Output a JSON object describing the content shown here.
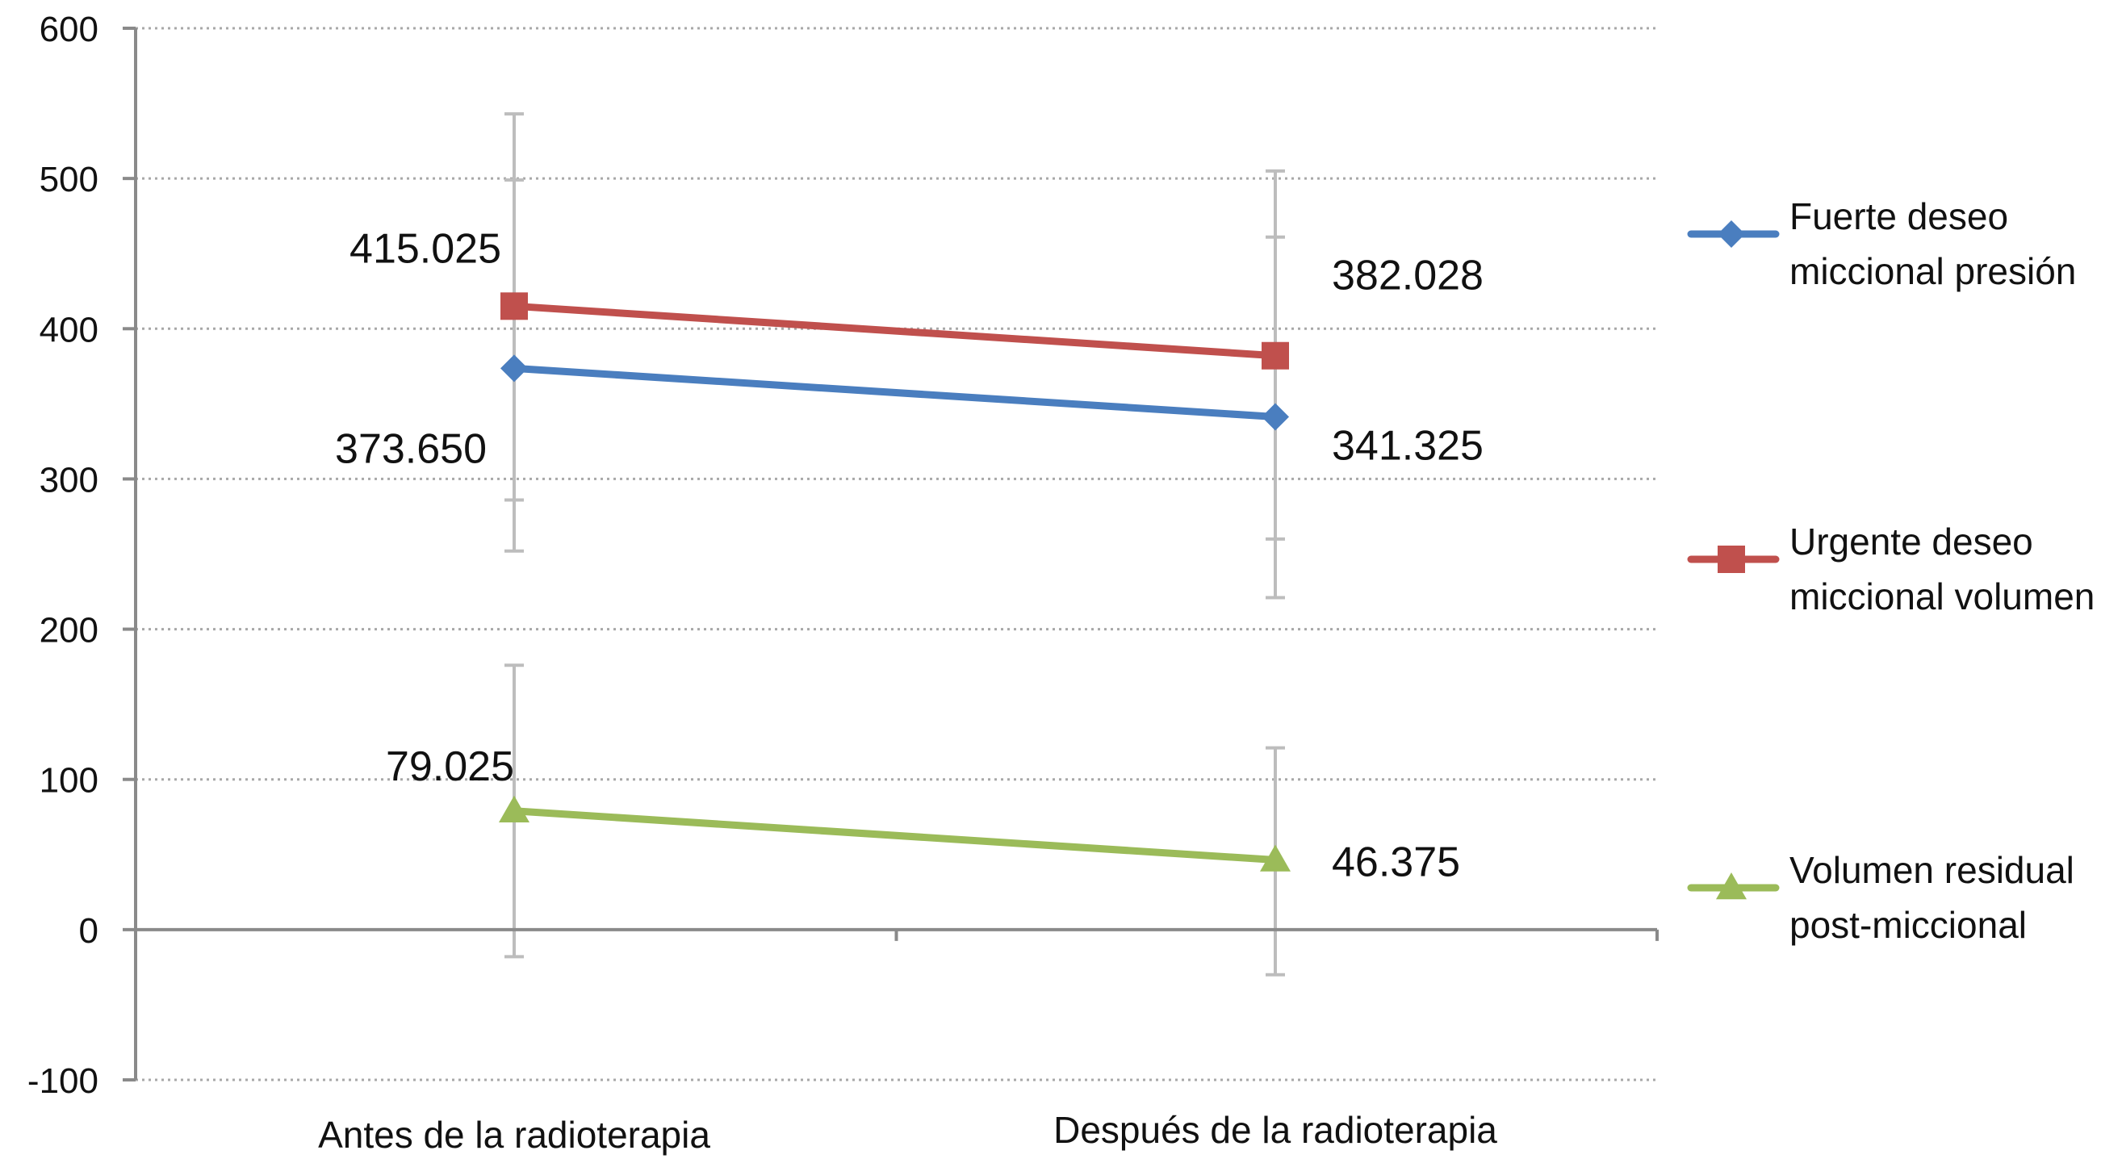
{
  "chart_data": {
    "type": "line",
    "categories": [
      "Antes de la radioterapia",
      "Después de la radioterapia"
    ],
    "ylim": [
      -100,
      600
    ],
    "yticks": [
      -100,
      0,
      100,
      200,
      300,
      400,
      500,
      600
    ],
    "ytick_labels": [
      "-100",
      "0",
      "100",
      "200",
      "300",
      "400",
      "500",
      "600"
    ],
    "grid": true,
    "legend_position": "right",
    "series": [
      {
        "name": "Fuerte deseo miccional presión",
        "legend_lines": [
          "Fuerte deseo",
          "miccional presión"
        ],
        "values": [
          373.65,
          341.325
        ],
        "labels": [
          "373.650",
          "341.325"
        ],
        "error": [
          [
            252,
            543
          ],
          [
            221,
            505
          ]
        ],
        "color": "#4a7ebf",
        "marker": "diamond"
      },
      {
        "name": "Urgente deseo miccional volumen",
        "legend_lines": [
          "Urgente deseo",
          "miccional volumen"
        ],
        "values": [
          415.025,
          382.028
        ],
        "labels": [
          "415.025",
          "382.028"
        ],
        "error": [
          [
            286,
            499
          ],
          [
            260,
            461
          ]
        ],
        "color": "#c0504d",
        "marker": "square"
      },
      {
        "name": "Volumen residual post-miccional",
        "legend_lines": [
          "Volumen residual",
          "post-miccional"
        ],
        "values": [
          79.025,
          46.375
        ],
        "labels": [
          "79.025",
          "46.375"
        ],
        "error": [
          [
            -18,
            176
          ],
          [
            -30,
            121
          ]
        ],
        "color": "#9bbb59",
        "marker": "triangle"
      }
    ]
  }
}
